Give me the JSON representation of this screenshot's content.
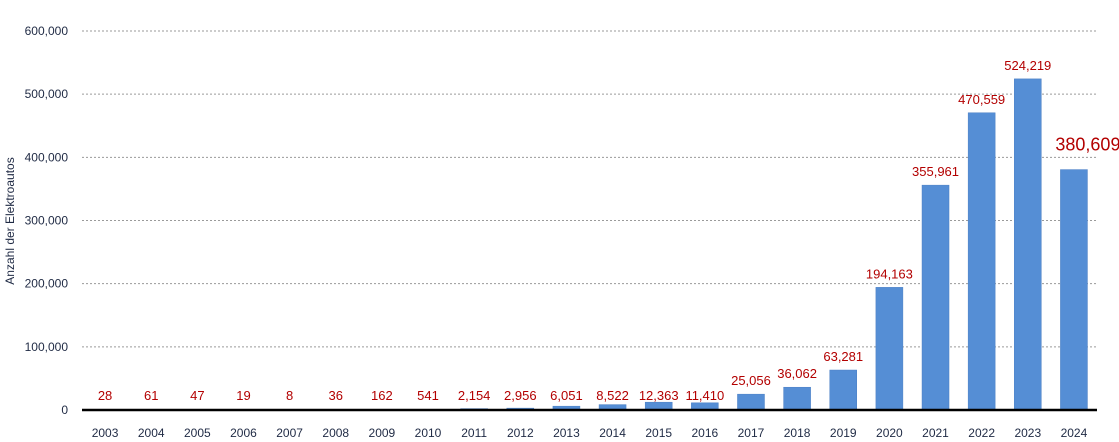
{
  "chart_data": {
    "type": "bar",
    "ylabel": "Anzahl der Elektroautos",
    "ylim": [
      0,
      600000
    ],
    "yticks": [
      0,
      100000,
      200000,
      300000,
      400000,
      500000,
      600000
    ],
    "ytick_labels": [
      "0",
      "100,000",
      "200,000",
      "300,000",
      "400,000",
      "500,000",
      "600,000"
    ],
    "grid": true,
    "categories": [
      "2003",
      "2004",
      "2005",
      "2006",
      "2007",
      "2008",
      "2009",
      "2010",
      "2011",
      "2012",
      "2013",
      "2014",
      "2015",
      "2016",
      "2017",
      "2018",
      "2019",
      "2020",
      "2021",
      "2022",
      "2023",
      "2024"
    ],
    "values": [
      28,
      61,
      47,
      19,
      8,
      36,
      162,
      541,
      2154,
      2956,
      6051,
      8522,
      12363,
      11410,
      25056,
      36062,
      63281,
      194163,
      355961,
      470559,
      524219,
      380609
    ],
    "data_labels": [
      "28",
      "61",
      "47",
      "19",
      "8",
      "36",
      "162",
      "541",
      "2,154",
      "2,956",
      "6,051",
      "8,522",
      "12,363",
      "11,410",
      "25,056",
      "36,062",
      "63,281",
      "194,163",
      "355,961",
      "470,559",
      "524,219",
      "380,609"
    ],
    "highlight_index": 21,
    "colors": {
      "bar": "#558ed5",
      "bar_stroke": "#4a7fc4",
      "label": "#b30000",
      "grid": "#9a9a9a",
      "axis_text": "#1f2a44"
    }
  }
}
